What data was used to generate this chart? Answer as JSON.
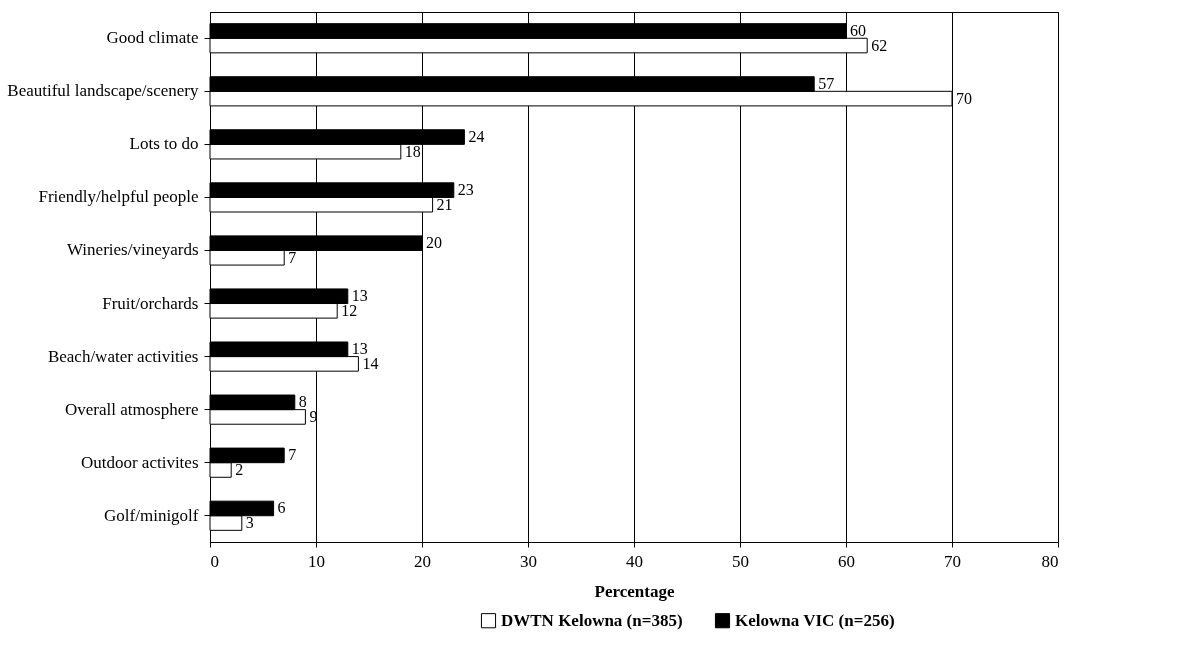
{
  "chart_data": {
    "type": "bar",
    "orientation": "horizontal",
    "xlabel": "Percentage",
    "categories": [
      "Good climate",
      "Beautiful landscape/scenery",
      "Lots to do",
      "Friendly/helpful people",
      "Wineries/vineyards",
      "Fruit/orchards",
      "Beach/water activities",
      "Overall atmosphere",
      "Outdoor activites",
      "Golf/minigolf"
    ],
    "series": [
      {
        "name": "DWTN Kelowna (n=385)",
        "color": "#ffffff",
        "values": [
          62,
          70,
          18,
          21,
          7,
          12,
          14,
          9,
          2,
          3
        ]
      },
      {
        "name": "Kelowna VIC (n=256)",
        "color": "#000000",
        "values": [
          60,
          57,
          24,
          23,
          20,
          13,
          13,
          8,
          7,
          6
        ]
      }
    ],
    "xlim": [
      0,
      80
    ],
    "xticks": [
      0,
      10,
      20,
      30,
      40,
      50,
      60,
      70,
      80
    ],
    "grid": "x",
    "legend": "bottom",
    "data_labels": true
  }
}
